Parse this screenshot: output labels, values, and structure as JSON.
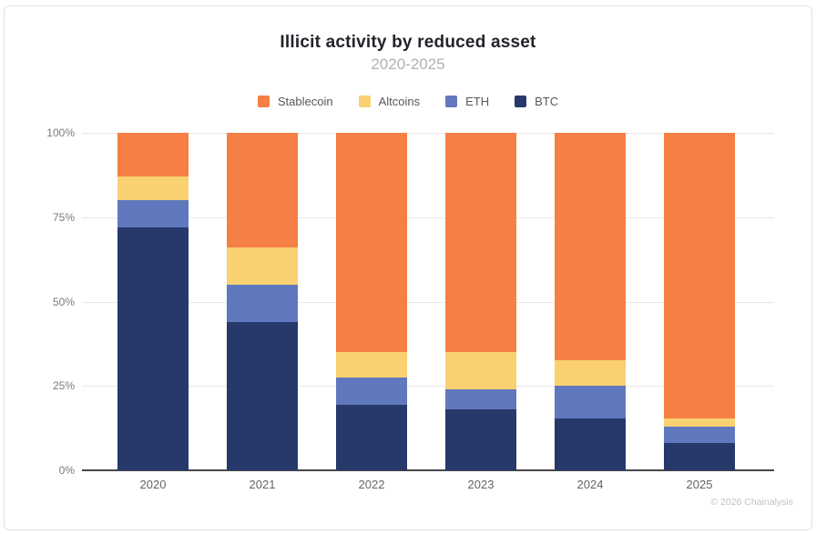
{
  "header": {
    "title": "Illicit activity by reduced asset",
    "subtitle": "2020-2025"
  },
  "legend": {
    "items": [
      {
        "label": "Stablecoin",
        "color": "#F57F45"
      },
      {
        "label": "Altcoins",
        "color": "#F9D171"
      },
      {
        "label": "ETH",
        "color": "#6078BD"
      },
      {
        "label": "BTC",
        "color": "#27386B"
      }
    ]
  },
  "chart_data": {
    "type": "bar",
    "stacked": true,
    "unit": "percent",
    "title": "Illicit activity by reduced asset",
    "subtitle": "2020-2025",
    "categories": [
      "2020",
      "2021",
      "2022",
      "2023",
      "2024",
      "2025"
    ],
    "series": [
      {
        "name": "BTC",
        "color": "#27386B",
        "values": [
          72,
          44,
          19.5,
          18,
          15.5,
          8
        ]
      },
      {
        "name": "ETH",
        "color": "#6078BD",
        "values": [
          8,
          11,
          8,
          6,
          9.5,
          5
        ]
      },
      {
        "name": "Altcoins",
        "color": "#F9D171",
        "values": [
          7,
          11,
          7.5,
          11,
          7.5,
          2.5
        ]
      },
      {
        "name": "Stablecoin",
        "color": "#F57F45",
        "values": [
          13,
          34,
          65,
          65,
          67.5,
          84.5
        ]
      }
    ],
    "stack_order_bottom_to_top": [
      "BTC",
      "ETH",
      "Altcoins",
      "Stablecoin"
    ],
    "y_axis": {
      "min": 0,
      "max": 100,
      "ticks": [
        0,
        25,
        50,
        75,
        100
      ],
      "tick_labels": [
        "0%",
        "25%",
        "50%",
        "75%",
        "100%"
      ]
    },
    "grid": true,
    "legend_position": "top"
  },
  "footer": {
    "copyright": "© 2026 Chainalysis"
  }
}
